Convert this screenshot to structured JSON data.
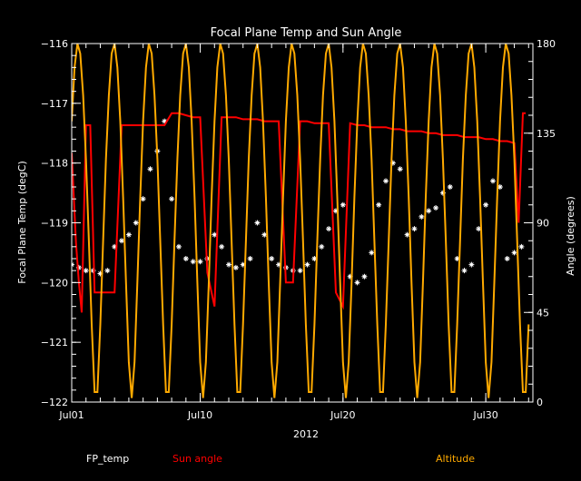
{
  "chart_data": {
    "type": "line",
    "title": "Focal Plane Temp and Sun Angle",
    "xlabel": "2012",
    "ylabel_left": "Focal Plane Temp (degC)",
    "ylabel_right": "Angle (degrees)",
    "xlim": [
      0,
      32.3
    ],
    "ylim_left": [
      -122,
      -116
    ],
    "ylim_right": [
      0,
      180
    ],
    "x_ticks": [
      {
        "value": 0,
        "label": "Jul01"
      },
      {
        "value": 9,
        "label": "Jul10"
      },
      {
        "value": 19,
        "label": "Jul20"
      },
      {
        "value": 29,
        "label": "Jul30"
      }
    ],
    "y_ticks_left": [
      {
        "value": -116,
        "label": "−116"
      },
      {
        "value": -117,
        "label": "−117"
      },
      {
        "value": -118,
        "label": "−118"
      },
      {
        "value": -119,
        "label": "−119"
      },
      {
        "value": -120,
        "label": "−120"
      },
      {
        "value": -121,
        "label": "−121"
      },
      {
        "value": -122,
        "label": "−122"
      }
    ],
    "y_ticks_right": [
      {
        "value": 180,
        "label": "180"
      },
      {
        "value": 135,
        "label": "135"
      },
      {
        "value": 90,
        "label": "90"
      },
      {
        "value": 45,
        "label": "45"
      },
      {
        "value": 0,
        "label": "0"
      }
    ],
    "series": [
      {
        "name": "FP_temp",
        "axis": "left",
        "color": "#ffffff",
        "marker": "asterisk",
        "x": [
          0,
          0.5,
          1.0,
          1.5,
          2.0,
          2.5,
          3.0,
          3.5,
          4.0,
          4.5,
          5.0,
          5.5,
          6.0,
          6.5,
          7.0,
          7.5,
          8.0,
          8.5,
          9.0,
          9.5,
          10.0,
          10.5,
          11.0,
          11.5,
          12.0,
          12.5,
          13.0,
          13.5,
          14.0,
          14.5,
          15.0,
          15.5,
          16.0,
          16.5,
          17.0,
          17.5,
          18.0,
          18.5,
          19.0,
          19.5,
          20.0,
          20.5,
          21.0,
          21.5,
          22.0,
          22.5,
          23.0,
          23.5,
          24.0,
          24.5,
          25.0,
          25.5,
          26.0,
          26.5,
          27.0,
          27.5,
          28.0,
          28.5,
          29.0,
          29.5,
          30.0,
          30.5,
          31.0,
          31.5
        ],
        "y": [
          -119.7,
          -119.75,
          -119.8,
          -119.8,
          -119.85,
          -119.8,
          -119.4,
          -119.3,
          -119.2,
          -119.0,
          -118.6,
          -118.1,
          -117.8,
          -117.3,
          -118.6,
          -119.4,
          -119.6,
          -119.65,
          -119.65,
          -119.6,
          -119.2,
          -119.4,
          -119.7,
          -119.75,
          -119.7,
          -119.6,
          -119.0,
          -119.2,
          -119.6,
          -119.7,
          -119.75,
          -119.8,
          -119.8,
          -119.7,
          -119.6,
          -119.4,
          -119.1,
          -118.8,
          -118.7,
          -119.9,
          -120.0,
          -119.9,
          -119.5,
          -118.7,
          -118.3,
          -118.0,
          -118.1,
          -119.2,
          -119.1,
          -118.9,
          -118.8,
          -118.75,
          -118.5,
          -118.4,
          -119.6,
          -119.8,
          -119.7,
          -119.1,
          -118.7,
          -118.3,
          -118.4,
          -119.6,
          -119.5,
          -119.4
        ]
      },
      {
        "name": "Sun angle",
        "axis": "right",
        "color": "#ff0000",
        "x": [
          0,
          0.3,
          0.5,
          0.7,
          1.0,
          1.3,
          1.6,
          2.0,
          2.5,
          3.0,
          3.5,
          4.0,
          4.5,
          5.0,
          5.5,
          6.0,
          6.5,
          7.0,
          7.5,
          8.0,
          8.5,
          9.0,
          9.5,
          10.0,
          10.5,
          11.0,
          11.5,
          12.0,
          12.5,
          13.0,
          13.5,
          14.0,
          14.5,
          15.0,
          15.5,
          16.0,
          16.5,
          17.0,
          17.5,
          18.0,
          18.5,
          19.0,
          19.5,
          20.0,
          20.5,
          21.0,
          21.5,
          22.0,
          22.5,
          23.0,
          23.5,
          24.0,
          24.5,
          25.0,
          25.5,
          26.0,
          26.5,
          27.0,
          27.5,
          28.0,
          28.5,
          29.0,
          29.5,
          30.0,
          30.5,
          31.0,
          31.3,
          31.6,
          31.8
        ],
        "y": [
          125,
          80,
          60,
          45,
          139,
          139,
          55,
          55,
          55,
          55,
          139,
          139,
          139,
          139,
          139,
          139,
          139,
          145,
          145,
          144,
          143,
          143,
          65,
          48,
          143,
          143,
          143,
          142,
          142,
          142,
          141,
          141,
          141,
          60,
          60,
          141,
          141,
          140,
          140,
          140,
          55,
          48,
          140,
          139,
          139,
          138,
          138,
          138,
          137,
          137,
          136,
          136,
          136,
          135,
          135,
          134,
          134,
          134,
          133,
          133,
          133,
          132,
          132,
          131,
          131,
          130,
          90,
          145,
          145
        ]
      },
      {
        "name": "Altitude",
        "axis": "right",
        "color": "#ffaa00",
        "x": [
          0.0,
          0.2,
          0.4,
          0.6,
          0.8,
          1.0,
          1.2,
          1.4,
          1.6,
          1.8,
          2.0,
          2.2,
          2.4,
          2.6,
          2.8,
          3.0,
          3.2,
          3.4,
          3.6,
          3.8,
          4.0,
          4.2,
          4.4,
          4.6,
          4.8,
          5.0,
          5.2,
          5.4,
          5.6,
          5.8,
          6.0,
          6.2,
          6.4,
          6.6,
          6.8,
          7.0,
          7.2,
          7.4,
          7.6,
          7.8,
          8.0,
          8.2,
          8.4,
          8.6,
          8.8,
          9.0,
          9.2,
          9.4,
          9.6,
          9.8,
          10.0,
          10.2,
          10.4,
          10.6,
          10.8,
          11.0,
          11.2,
          11.4,
          11.6,
          11.8,
          12.0,
          12.2,
          12.4,
          12.6,
          12.8,
          13.0,
          13.2,
          13.4,
          13.6,
          13.8,
          14.0,
          14.2,
          14.4,
          14.6,
          14.8,
          15.0,
          15.2,
          15.4,
          15.6,
          15.8,
          16.0,
          16.2,
          16.4,
          16.6,
          16.8,
          17.0,
          17.2,
          17.4,
          17.6,
          17.8,
          18.0,
          18.2,
          18.4,
          18.6,
          18.8,
          19.0,
          19.2,
          19.4,
          19.6,
          19.8,
          20.0,
          20.2,
          20.4,
          20.6,
          20.8,
          21.0,
          21.2,
          21.4,
          21.6,
          21.8,
          22.0,
          22.2,
          22.4,
          22.6,
          22.8,
          23.0,
          23.2,
          23.4,
          23.6,
          23.8,
          24.0,
          24.2,
          24.4,
          24.6,
          24.8,
          25.0,
          25.2,
          25.4,
          25.6,
          25.8,
          26.0,
          26.2,
          26.4,
          26.6,
          26.8,
          27.0,
          27.2,
          27.4,
          27.6,
          27.8,
          28.0,
          28.2,
          28.4,
          28.6,
          28.8,
          29.0,
          29.2,
          29.4,
          29.6,
          29.8,
          30.0,
          30.2,
          30.4,
          30.6,
          30.8,
          31.0,
          31.2,
          31.4,
          31.6,
          31.8,
          32.0
        ],
        "y": [
          141,
          168,
          180,
          175,
          154,
          122,
          81,
          39,
          5,
          5,
          39,
          81,
          122,
          154,
          175,
          180,
          168,
          141,
          103,
          60,
          20,
          2,
          20,
          60,
          103,
          141,
          168,
          180,
          175,
          154,
          122,
          81,
          39,
          5,
          5,
          39,
          81,
          122,
          154,
          175,
          180,
          168,
          141,
          103,
          60,
          20,
          2,
          20,
          60,
          103,
          141,
          168,
          180,
          175,
          154,
          122,
          81,
          39,
          5,
          5,
          39,
          81,
          122,
          154,
          175,
          180,
          168,
          141,
          103,
          60,
          20,
          2,
          20,
          60,
          103,
          141,
          168,
          180,
          175,
          154,
          122,
          81,
          39,
          5,
          5,
          39,
          81,
          122,
          154,
          175,
          180,
          168,
          141,
          103,
          60,
          20,
          2,
          20,
          60,
          103,
          141,
          168,
          180,
          175,
          154,
          122,
          81,
          39,
          5,
          5,
          39,
          81,
          122,
          154,
          175,
          180,
          168,
          141,
          103,
          60,
          20,
          2,
          20,
          60,
          103,
          141,
          168,
          180,
          175,
          154,
          122,
          81,
          39,
          5,
          5,
          39,
          81,
          122,
          154,
          175,
          180,
          168,
          141,
          103,
          60,
          20,
          2,
          20,
          60,
          103,
          141,
          168,
          180,
          175,
          154,
          122,
          81,
          39,
          5,
          5,
          39
        ]
      }
    ],
    "legend": [
      {
        "label": "FP_temp",
        "color": "#ffffff"
      },
      {
        "label": "Sun angle",
        "color": "#ff0000"
      },
      {
        "label": "Altitude",
        "color": "#ffaa00"
      }
    ],
    "legend_position": "bottom",
    "grid": false,
    "background": "#000000",
    "axis_color": "#ffffff"
  }
}
